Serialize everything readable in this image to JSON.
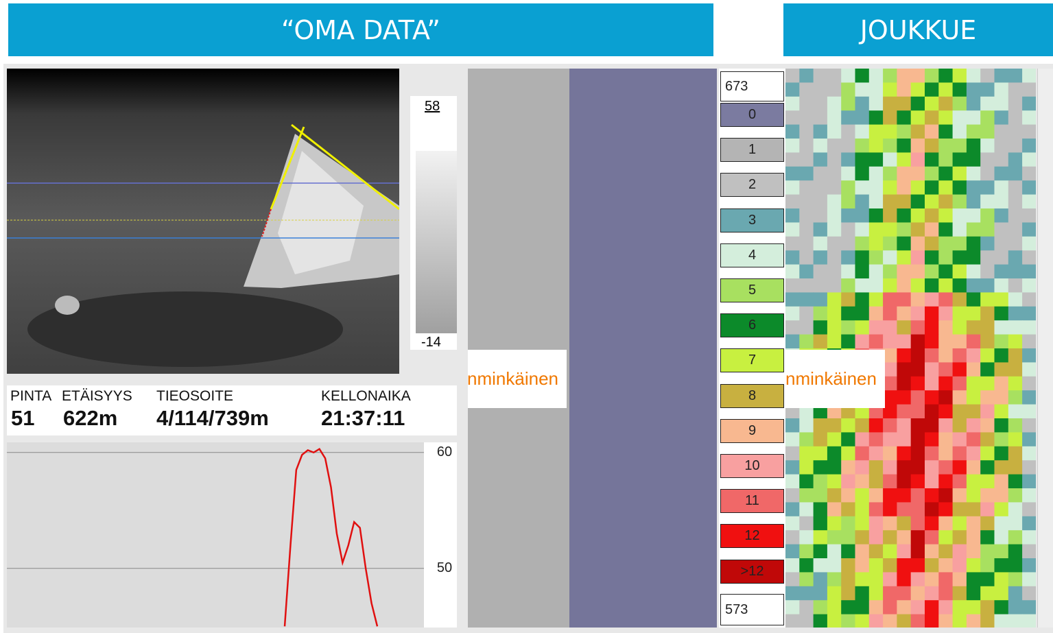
{
  "header": {
    "left_title": "“OMA DATA”",
    "right_title": "JOUKKUE"
  },
  "camera": {
    "scale_max": "58",
    "scale_min": "-14"
  },
  "info": {
    "labels": [
      "PINTA",
      "ETÄISYYS",
      "TIEOSOITE",
      "KELLONAIKA"
    ],
    "values": [
      "51",
      "622m",
      "4/114/739m",
      "21:37:11"
    ]
  },
  "profile": {
    "ylim": [
      44.9,
      60.4
    ],
    "yticks": [
      60,
      50
    ],
    "color": "#e01010",
    "values": [
      45,
      52,
      58.5,
      59.8,
      60.2,
      60,
      60.3,
      59.5,
      57,
      53,
      50.5,
      52,
      54,
      53.5,
      50,
      47,
      45
    ]
  },
  "popup_text": "nminkäinen",
  "legend": {
    "top": "673",
    "bottom": "573",
    "classes": [
      {
        "label": "0",
        "color": "#7b7ba0"
      },
      {
        "label": "1",
        "color": "#b4b4b4"
      },
      {
        "label": "2",
        "color": "#c0c0c0"
      },
      {
        "label": "3",
        "color": "#6aa8b0"
      },
      {
        "label": "4",
        "color": "#d4eedc"
      },
      {
        "label": "5",
        "color": "#a8e060"
      },
      {
        "label": "6",
        "color": "#0c8a2a"
      },
      {
        "label": "7",
        "color": "#c8f040"
      },
      {
        "label": "8",
        "color": "#c8b040"
      },
      {
        "label": "9",
        "color": "#f8b890"
      },
      {
        "label": "10",
        "color": "#f8a0a0"
      },
      {
        "label": "11",
        "color": "#f06868"
      },
      {
        "label": "12",
        "color": "#f01010"
      },
      {
        "label": ">12",
        "color": "#c00808"
      }
    ]
  }
}
